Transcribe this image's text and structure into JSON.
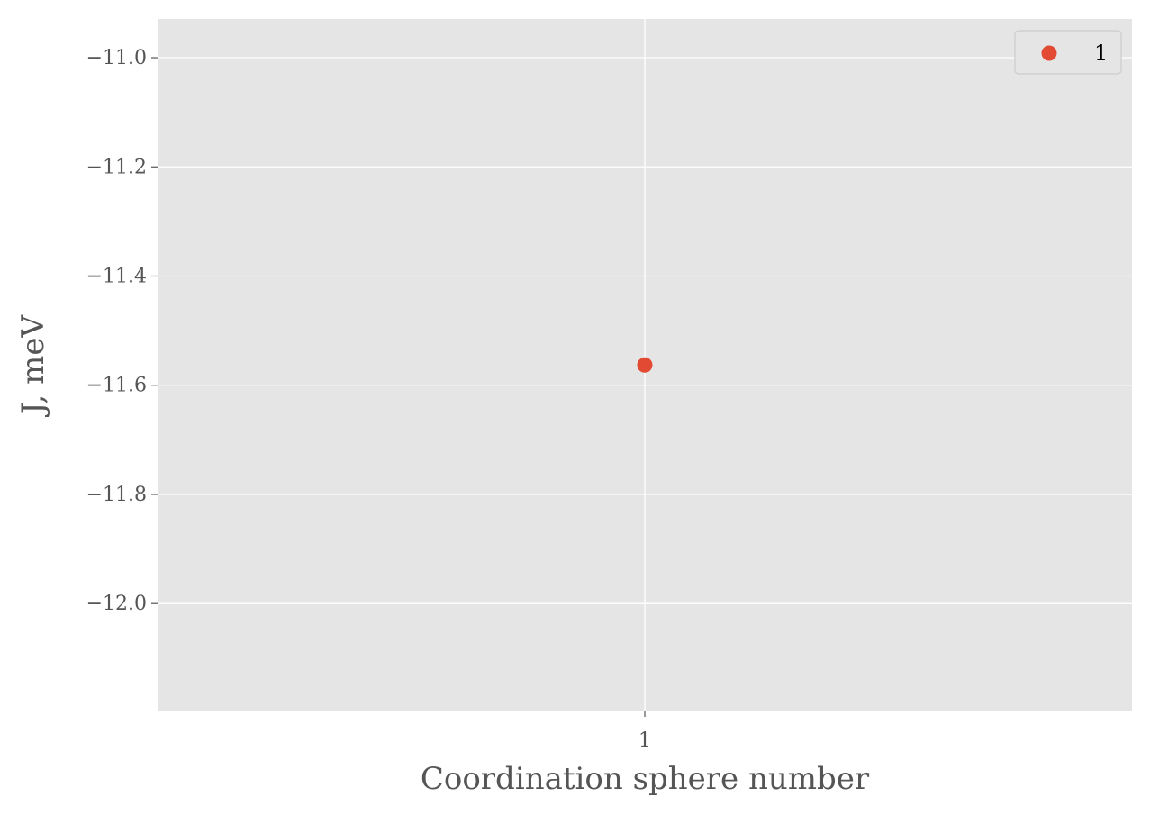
{
  "chart_data": {
    "type": "scatter",
    "title": "",
    "xlabel": "Coordination sphere number",
    "ylabel": "J, meV",
    "xticks": [
      {
        "value": 1,
        "label": "1"
      }
    ],
    "yticks": [
      {
        "value": -11.0,
        "label": "−11.0"
      },
      {
        "value": -11.2,
        "label": "−11.2"
      },
      {
        "value": -11.4,
        "label": "−11.4"
      },
      {
        "value": -11.6,
        "label": "−11.6"
      },
      {
        "value": -11.8,
        "label": "−11.8"
      },
      {
        "value": -12.0,
        "label": "−12.0"
      }
    ],
    "xlim": [
      0,
      2
    ],
    "ylim": [
      -12.196,
      -10.929
    ],
    "grid": true,
    "legend_position": "top-right",
    "series": [
      {
        "name": "1",
        "color": "#E24A33",
        "points": [
          {
            "x": 1,
            "y": -11.563
          }
        ]
      }
    ]
  },
  "colors": {
    "plot_background": "#E5E5E5",
    "grid": "#FFFFFF",
    "text": "#555555"
  }
}
